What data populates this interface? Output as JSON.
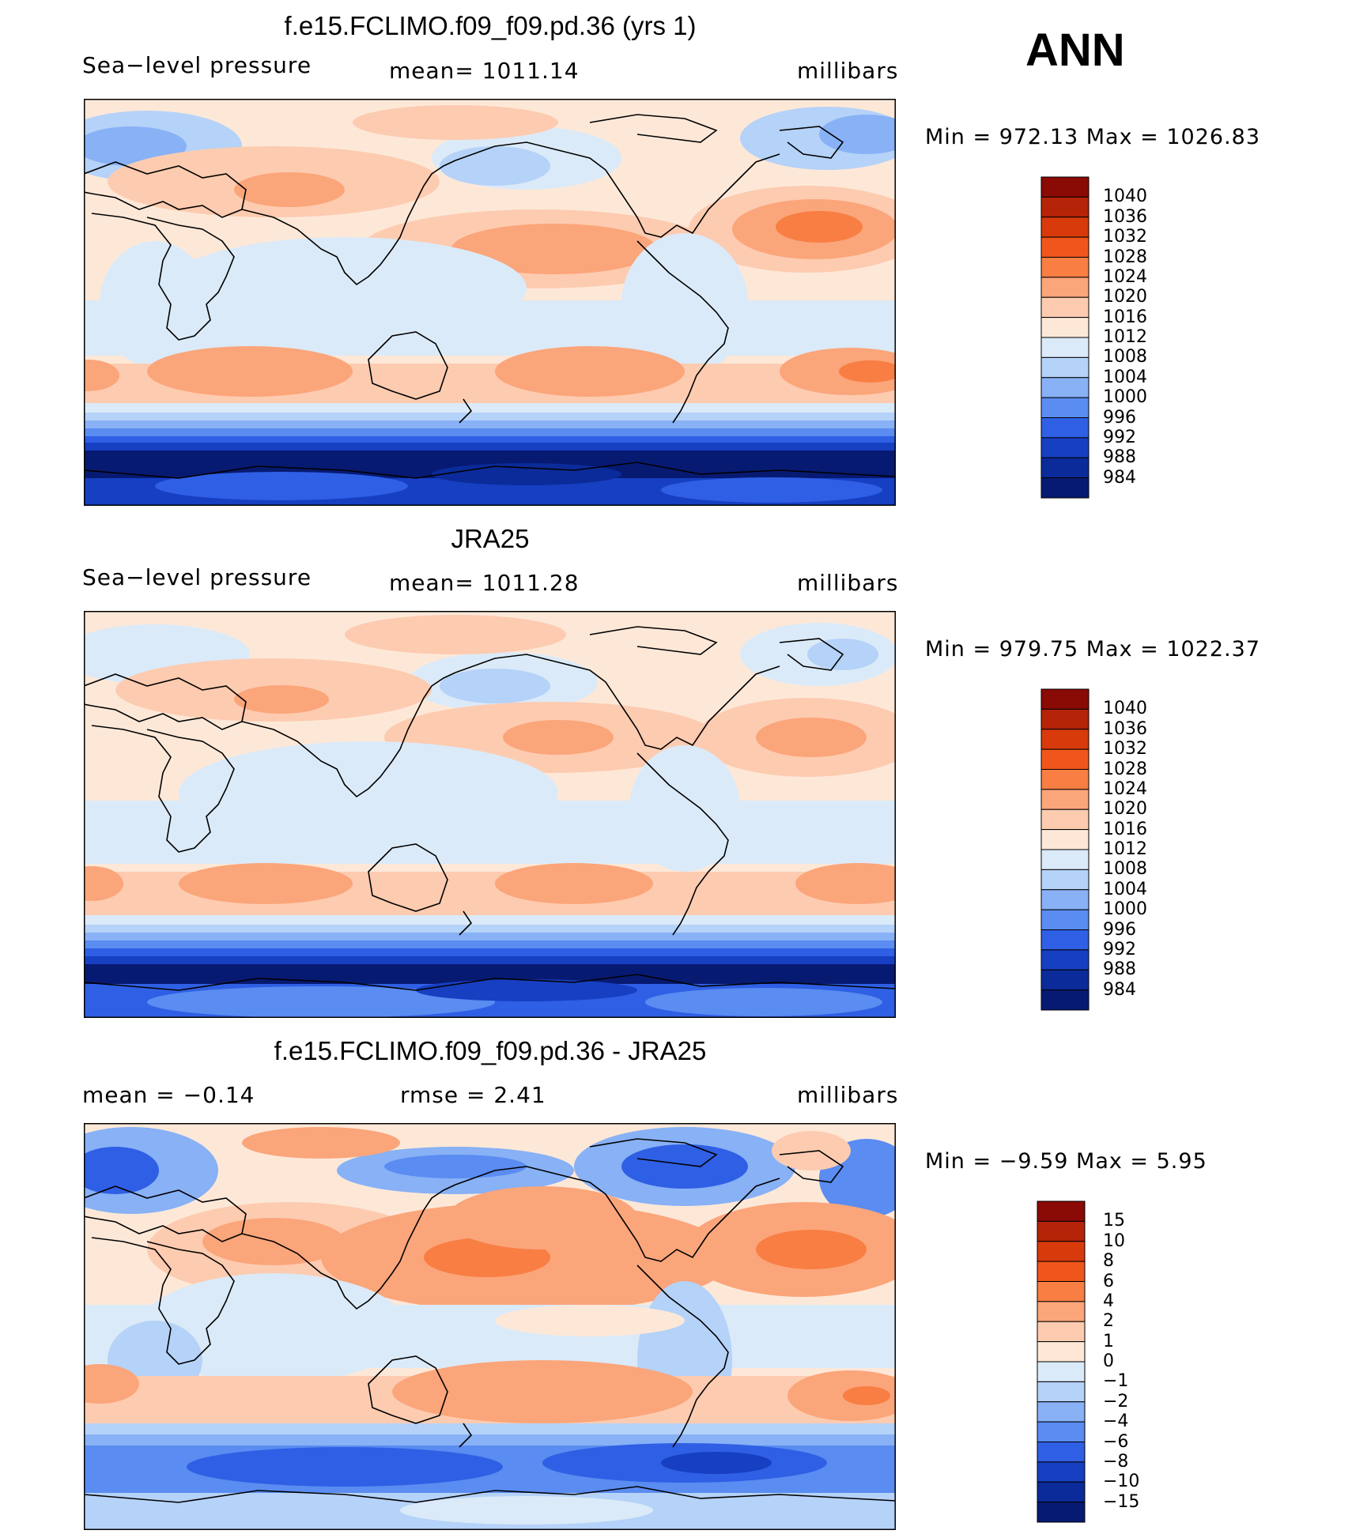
{
  "season": "ANN",
  "panels": [
    {
      "title": "f.e15.FCLIMO.f09_f09.pd.36 (yrs 1)",
      "left_label": "Sea−level pressure",
      "center_label": "mean=  1011.14",
      "units": "millibars",
      "minmax": "Min  =  972.13  Max  =  1026.83"
    },
    {
      "title": "JRA25",
      "left_label": "Sea−level pressure",
      "center_label": "mean=  1011.28",
      "units": "millibars",
      "minmax": "Min  =  979.75  Max  =  1022.37"
    },
    {
      "title": "f.e15.FCLIMO.f09_f09.pd.36 - JRA25",
      "left_label": "mean  =    −0.14",
      "center_label": "rmse  =     2.41",
      "units": "millibars",
      "minmax": "Min  =    −9.59  Max  =      5.95"
    }
  ],
  "legends": [
    {
      "labels": [
        "1040",
        "1036",
        "1032",
        "1028",
        "1024",
        "1020",
        "1016",
        "1012",
        "1008",
        "1004",
        "1000",
        "996",
        "992",
        "988",
        "984"
      ],
      "colors": [
        "#8a0a05",
        "#b52308",
        "#d83a0b",
        "#f0561c",
        "#f87e43",
        "#fba57a",
        "#fdcbb0",
        "#fde8d8",
        "#dbeaf8",
        "#b5d2f8",
        "#88b1f6",
        "#5a8cf1",
        "#2f5fe4",
        "#163fc2",
        "#0a2b99",
        "#071a72"
      ]
    },
    {
      "labels": [
        "1040",
        "1036",
        "1032",
        "1028",
        "1024",
        "1020",
        "1016",
        "1012",
        "1008",
        "1004",
        "1000",
        "996",
        "992",
        "988",
        "984"
      ],
      "colors": [
        "#8a0a05",
        "#b52308",
        "#d83a0b",
        "#f0561c",
        "#f87e43",
        "#fba57a",
        "#fdcbb0",
        "#fde8d8",
        "#dbeaf8",
        "#b5d2f8",
        "#88b1f6",
        "#5a8cf1",
        "#2f5fe4",
        "#163fc2",
        "#0a2b99",
        "#071a72"
      ]
    },
    {
      "labels": [
        "15",
        "10",
        "8",
        "6",
        "4",
        "2",
        "1",
        "0",
        "−1",
        "−2",
        "−4",
        "−6",
        "−8",
        "−10",
        "−15"
      ],
      "colors": [
        "#8a0a05",
        "#b52308",
        "#d83a0b",
        "#f0561c",
        "#f87e43",
        "#fba57a",
        "#fdcbb0",
        "#fde8d8",
        "#dbeaf8",
        "#b5d2f8",
        "#88b1f6",
        "#5a8cf1",
        "#2f5fe4",
        "#163fc2",
        "#0a2b99",
        "#071a72"
      ]
    }
  ]
}
